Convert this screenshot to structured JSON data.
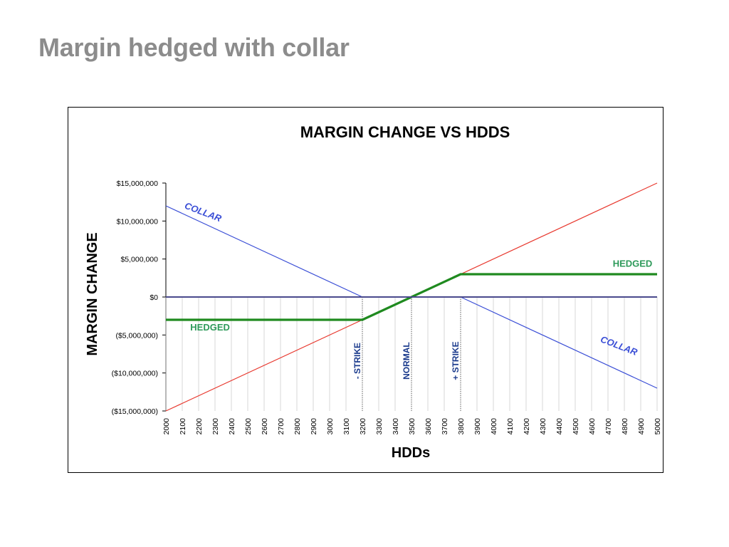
{
  "slide": {
    "title": "Margin hedged with collar"
  },
  "chart_data": {
    "type": "line",
    "title": "MARGIN CHANGE VS HDDS",
    "xlabel": "HDDs",
    "ylabel": "MARGIN CHANGE",
    "xlim": [
      2000,
      5000
    ],
    "ylim": [
      -15000000,
      15000000
    ],
    "x_ticks": [
      "2000",
      "2100",
      "2200",
      "2300",
      "2400",
      "2500",
      "2600",
      "2700",
      "2800",
      "2900",
      "3000",
      "3100",
      "3200",
      "3300",
      "3400",
      "3500",
      "3600",
      "3700",
      "3800",
      "3900",
      "4000",
      "4100",
      "4200",
      "4300",
      "4400",
      "4500",
      "4600",
      "4700",
      "4800",
      "4900",
      "5000"
    ],
    "y_ticks": [
      {
        "value": 15000000,
        "label": "$15,000,000"
      },
      {
        "value": 10000000,
        "label": "$10,000,000"
      },
      {
        "value": 5000000,
        "label": "$5,000,000"
      },
      {
        "value": 0,
        "label": "$0"
      },
      {
        "value": -5000000,
        "label": "($5,000,000)"
      },
      {
        "value": -10000000,
        "label": "($10,000,000)"
      },
      {
        "value": -15000000,
        "label": "($15,000,000)"
      }
    ],
    "series": [
      {
        "key": "unhedged",
        "color": "#e8392f",
        "width": 1.2,
        "x": [
          2000,
          5000
        ],
        "y": [
          -15000000,
          15000000
        ]
      },
      {
        "key": "collar",
        "color": "#3a4ed6",
        "width": 1.2,
        "x": [
          2000,
          3200,
          3800,
          5000
        ],
        "y": [
          12000000,
          0,
          0,
          -12000000
        ]
      },
      {
        "key": "hedged",
        "color": "#1f8a1f",
        "width": 3.2,
        "x": [
          2000,
          3200,
          3800,
          5000
        ],
        "y": [
          -3000000,
          -3000000,
          3000000,
          3000000
        ]
      },
      {
        "key": "zero",
        "color": "#4a4a8c",
        "width": 2,
        "x": [
          2000,
          5000
        ],
        "y": [
          0,
          0
        ]
      }
    ],
    "vlines": [
      {
        "x": 3200,
        "label": "- STRIKE"
      },
      {
        "x": 3500,
        "label": "NORMAL"
      },
      {
        "x": 3800,
        "label": "+ STRIKE"
      }
    ],
    "annotations": [
      {
        "text": "COLLAR",
        "x": 2220,
        "y": 10800000,
        "angle": 21,
        "color": "#3a4ed6",
        "italic": true
      },
      {
        "text": "COLLAR",
        "x": 4760,
        "y": -6800000,
        "angle": 21,
        "color": "#3a4ed6",
        "italic": true
      },
      {
        "text": "HEDGED",
        "x": 2270,
        "y": -4400000,
        "angle": 0,
        "color": "#2e9a5a",
        "italic": false
      },
      {
        "text": "HEDGED",
        "x": 4850,
        "y": 4000000,
        "angle": 0,
        "color": "#2e9a5a",
        "italic": false
      }
    ],
    "colors": {
      "strike_label": "#1a3a8c",
      "tick_label": "#000000"
    }
  }
}
